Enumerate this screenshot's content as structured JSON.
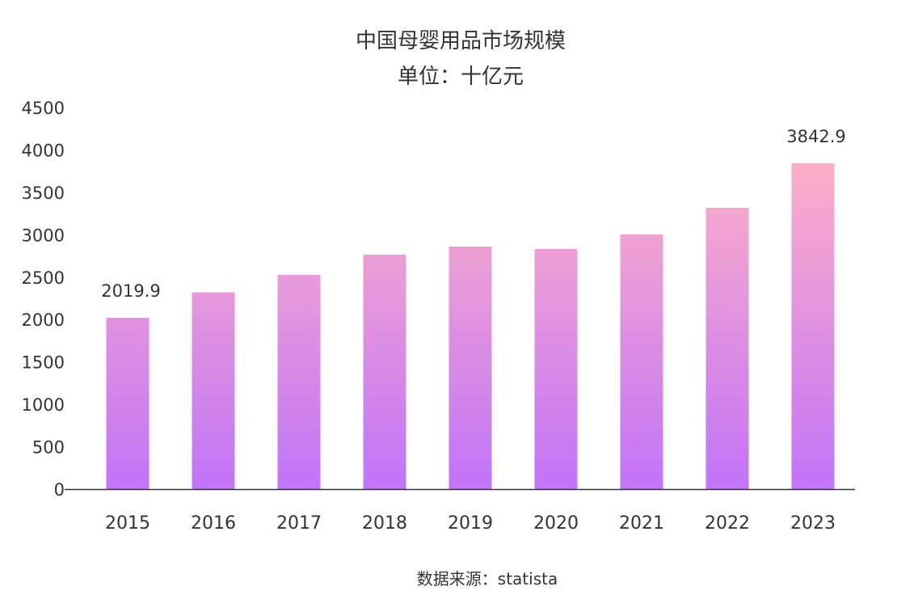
{
  "chart_data": {
    "type": "bar",
    "title": "中国母婴用品市场规模",
    "subtitle": "单位：十亿元",
    "source": "数据来源：statista",
    "categories": [
      "2015",
      "2016",
      "2017",
      "2018",
      "2019",
      "2020",
      "2021",
      "2022",
      "2023"
    ],
    "values": [
      2019.9,
      2320,
      2526,
      2765,
      2860,
      2832,
      3003,
      3318,
      3842.9
    ],
    "data_labels": {
      "0": "2019.9",
      "8": "3842.9"
    },
    "ylim": [
      0,
      4500
    ],
    "yticks": [
      "0",
      "500",
      "1000",
      "1500",
      "2000",
      "2500",
      "3000",
      "3500",
      "4000",
      "4500"
    ],
    "grid": false,
    "colors": {
      "bar_top": "#fcaec8",
      "bar_bottom": "#c174f8",
      "axis": "#333333"
    }
  }
}
